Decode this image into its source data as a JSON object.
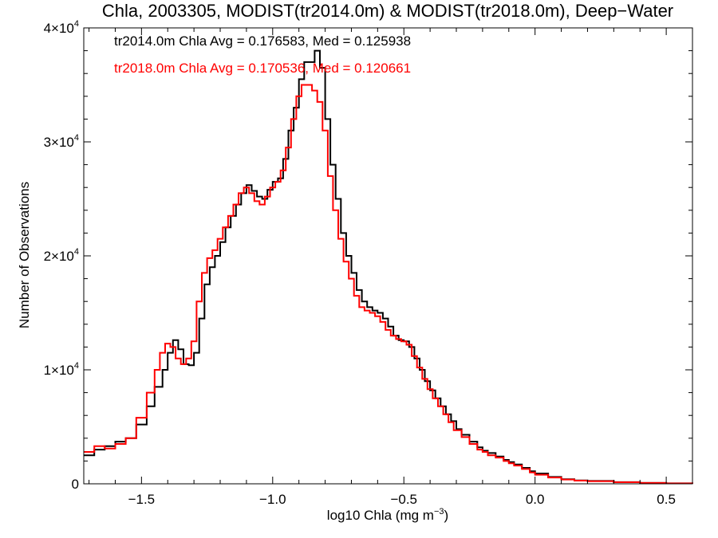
{
  "chart_data": {
    "type": "line",
    "title": "Chla, 2003305, MODIST(tr2014.0m) & MODIST(tr2018.0m), Deep−Water",
    "xlabel": "log10 Chla (mg m",
    "xlabel_sup": "−3",
    "xlabel_close": ")",
    "ylabel": "Number of Observations",
    "xlim": [
      -1.72,
      0.6
    ],
    "ylim": [
      0,
      40000
    ],
    "x_ticks": [
      {
        "value": -1.5,
        "label": "−1.5"
      },
      {
        "value": -1.0,
        "label": "−1.0"
      },
      {
        "value": -0.5,
        "label": "−0.5"
      },
      {
        "value": 0.0,
        "label": "0.0"
      },
      {
        "value": 0.5,
        "label": "0.5"
      }
    ],
    "y_ticks": [
      {
        "value": 0,
        "label": "0",
        "exp": ""
      },
      {
        "value": 10000,
        "label": "1×10",
        "exp": "4"
      },
      {
        "value": 20000,
        "label": "2×10",
        "exp": "4"
      },
      {
        "value": 30000,
        "label": "3×10",
        "exp": "4"
      },
      {
        "value": 40000,
        "label": "4×10",
        "exp": "4"
      }
    ],
    "annotations": [
      {
        "text": "tr2014.0m Chla Avg = 0.176583, Med = 0.125938",
        "color": "#000000"
      },
      {
        "text": "tr2018.0m Chla Avg = 0.170536, Med = 0.120661",
        "color": "#ff0000"
      }
    ],
    "series": [
      {
        "color": "#000000",
        "points": [
          [
            -1.72,
            2500
          ],
          [
            -1.68,
            3000
          ],
          [
            -1.64,
            3300
          ],
          [
            -1.6,
            3700
          ],
          [
            -1.56,
            4000
          ],
          [
            -1.52,
            5200
          ],
          [
            -1.48,
            6800
          ],
          [
            -1.45,
            8500
          ],
          [
            -1.42,
            10000
          ],
          [
            -1.4,
            11500
          ],
          [
            -1.38,
            12600
          ],
          [
            -1.36,
            11800
          ],
          [
            -1.34,
            10500
          ],
          [
            -1.32,
            10400
          ],
          [
            -1.3,
            11500
          ],
          [
            -1.28,
            14500
          ],
          [
            -1.26,
            17500
          ],
          [
            -1.24,
            19000
          ],
          [
            -1.22,
            20000
          ],
          [
            -1.2,
            21200
          ],
          [
            -1.18,
            22500
          ],
          [
            -1.16,
            23500
          ],
          [
            -1.14,
            24500
          ],
          [
            -1.12,
            25500
          ],
          [
            -1.1,
            26200
          ],
          [
            -1.08,
            25700
          ],
          [
            -1.06,
            25200
          ],
          [
            -1.04,
            25000
          ],
          [
            -1.02,
            25800
          ],
          [
            -1.0,
            26500
          ],
          [
            -0.98,
            26800
          ],
          [
            -0.96,
            28500
          ],
          [
            -0.94,
            31000
          ],
          [
            -0.92,
            33000
          ],
          [
            -0.9,
            35500
          ],
          [
            -0.88,
            37000
          ],
          [
            -0.86,
            37000
          ],
          [
            -0.84,
            38000
          ],
          [
            -0.82,
            36500
          ],
          [
            -0.8,
            32000
          ],
          [
            -0.78,
            28000
          ],
          [
            -0.76,
            25000
          ],
          [
            -0.74,
            22000
          ],
          [
            -0.72,
            20000
          ],
          [
            -0.7,
            18500
          ],
          [
            -0.68,
            17000
          ],
          [
            -0.66,
            16000
          ],
          [
            -0.64,
            15500
          ],
          [
            -0.62,
            15200
          ],
          [
            -0.6,
            15000
          ],
          [
            -0.58,
            14500
          ],
          [
            -0.56,
            13800
          ],
          [
            -0.54,
            13000
          ],
          [
            -0.52,
            12600
          ],
          [
            -0.5,
            12500
          ],
          [
            -0.48,
            12000
          ],
          [
            -0.46,
            11000
          ],
          [
            -0.44,
            10000
          ],
          [
            -0.42,
            9000
          ],
          [
            -0.4,
            8200
          ],
          [
            -0.38,
            7500
          ],
          [
            -0.36,
            6800
          ],
          [
            -0.34,
            6100
          ],
          [
            -0.32,
            5500
          ],
          [
            -0.3,
            4800
          ],
          [
            -0.28,
            4300
          ],
          [
            -0.25,
            3700
          ],
          [
            -0.22,
            3200
          ],
          [
            -0.2,
            2900
          ],
          [
            -0.18,
            2700
          ],
          [
            -0.15,
            2400
          ],
          [
            -0.12,
            2100
          ],
          [
            -0.1,
            1900
          ],
          [
            -0.08,
            1700
          ],
          [
            -0.05,
            1400
          ],
          [
            -0.02,
            1100
          ],
          [
            0.0,
            900
          ],
          [
            0.05,
            600
          ],
          [
            0.1,
            400
          ],
          [
            0.15,
            300
          ],
          [
            0.2,
            250
          ],
          [
            0.3,
            150
          ],
          [
            0.4,
            80
          ],
          [
            0.5,
            40
          ],
          [
            0.6,
            20
          ]
        ]
      },
      {
        "color": "#ff0000",
        "points": [
          [
            -1.72,
            2800
          ],
          [
            -1.68,
            3300
          ],
          [
            -1.64,
            3100
          ],
          [
            -1.6,
            3500
          ],
          [
            -1.56,
            4000
          ],
          [
            -1.52,
            5800
          ],
          [
            -1.48,
            8000
          ],
          [
            -1.45,
            10000
          ],
          [
            -1.43,
            11500
          ],
          [
            -1.41,
            12300
          ],
          [
            -1.39,
            12000
          ],
          [
            -1.37,
            11000
          ],
          [
            -1.35,
            10500
          ],
          [
            -1.33,
            11000
          ],
          [
            -1.31,
            12500
          ],
          [
            -1.29,
            16000
          ],
          [
            -1.27,
            18500
          ],
          [
            -1.25,
            19800
          ],
          [
            -1.23,
            20500
          ],
          [
            -1.21,
            21500
          ],
          [
            -1.19,
            22500
          ],
          [
            -1.17,
            23500
          ],
          [
            -1.15,
            24500
          ],
          [
            -1.13,
            25500
          ],
          [
            -1.11,
            26000
          ],
          [
            -1.09,
            25500
          ],
          [
            -1.07,
            24800
          ],
          [
            -1.05,
            24500
          ],
          [
            -1.03,
            25200
          ],
          [
            -1.01,
            26000
          ],
          [
            -0.99,
            26500
          ],
          [
            -0.97,
            27500
          ],
          [
            -0.95,
            29500
          ],
          [
            -0.93,
            32000
          ],
          [
            -0.91,
            34000
          ],
          [
            -0.89,
            35000
          ],
          [
            -0.87,
            35000
          ],
          [
            -0.85,
            34500
          ],
          [
            -0.83,
            33500
          ],
          [
            -0.81,
            31000
          ],
          [
            -0.79,
            27000
          ],
          [
            -0.77,
            24000
          ],
          [
            -0.75,
            21500
          ],
          [
            -0.73,
            19500
          ],
          [
            -0.71,
            18000
          ],
          [
            -0.69,
            16500
          ],
          [
            -0.67,
            15500
          ],
          [
            -0.65,
            15200
          ],
          [
            -0.63,
            15000
          ],
          [
            -0.61,
            14700
          ],
          [
            -0.59,
            14200
          ],
          [
            -0.57,
            13500
          ],
          [
            -0.55,
            13000
          ],
          [
            -0.53,
            12700
          ],
          [
            -0.51,
            12500
          ],
          [
            -0.49,
            12200
          ],
          [
            -0.47,
            11200
          ],
          [
            -0.45,
            10200
          ],
          [
            -0.43,
            9200
          ],
          [
            -0.41,
            8300
          ],
          [
            -0.39,
            7500
          ],
          [
            -0.37,
            6800
          ],
          [
            -0.35,
            6100
          ],
          [
            -0.33,
            5400
          ],
          [
            -0.31,
            4700
          ],
          [
            -0.28,
            4100
          ],
          [
            -0.25,
            3500
          ],
          [
            -0.22,
            3000
          ],
          [
            -0.2,
            2800
          ],
          [
            -0.18,
            2500
          ],
          [
            -0.15,
            2300
          ],
          [
            -0.12,
            2000
          ],
          [
            -0.1,
            1800
          ],
          [
            -0.08,
            1600
          ],
          [
            -0.05,
            1300
          ],
          [
            -0.02,
            1000
          ],
          [
            0.0,
            800
          ],
          [
            0.05,
            550
          ],
          [
            0.1,
            380
          ],
          [
            0.15,
            280
          ],
          [
            0.2,
            230
          ],
          [
            0.3,
            140
          ],
          [
            0.4,
            75
          ],
          [
            0.5,
            35
          ],
          [
            0.6,
            20
          ]
        ]
      }
    ]
  }
}
